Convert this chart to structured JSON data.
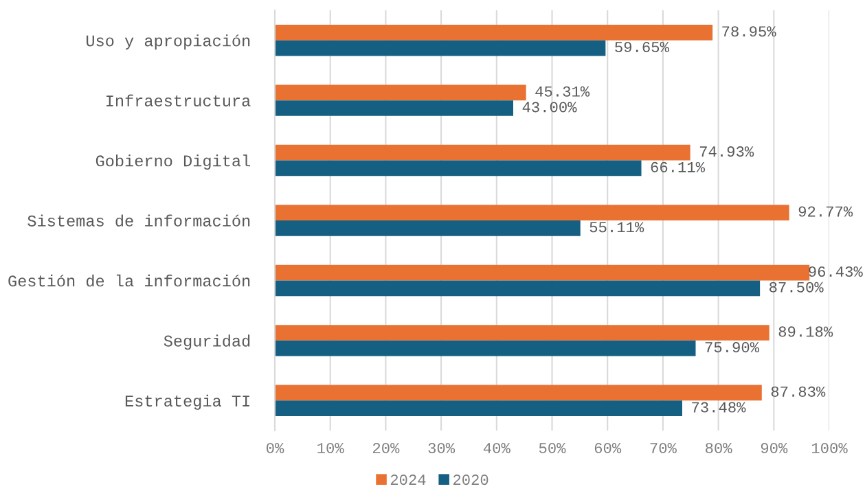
{
  "chart_data": {
    "type": "bar",
    "orientation": "horizontal",
    "categories": [
      "Uso y apropiación",
      "Infraestructura",
      "Gobierno Digital",
      "Sistemas de información",
      "Gestión de la información",
      "Seguridad",
      "Estrategia TI"
    ],
    "series": [
      {
        "name": "2024",
        "color": "#e97132",
        "values": [
          78.95,
          45.31,
          74.93,
          92.77,
          96.43,
          89.18,
          87.83
        ],
        "value_labels": [
          "78.95%",
          "45.31%",
          "74.93%",
          "92.77%",
          "96.43%",
          "89.18%",
          "87.83%"
        ]
      },
      {
        "name": "2020",
        "color": "#156082",
        "values": [
          59.65,
          43.0,
          66.11,
          55.11,
          87.5,
          75.9,
          73.48
        ],
        "value_labels": [
          "59.65%",
          "43.00%",
          "66.11%",
          "55.11%",
          "87.50%",
          "75.90%",
          "73.48%"
        ]
      }
    ],
    "xlim": [
      0,
      100
    ],
    "xticks": [
      {
        "value": 0,
        "label": "0%"
      },
      {
        "value": 10,
        "label": "10%"
      },
      {
        "value": 20,
        "label": "20%"
      },
      {
        "value": 30,
        "label": "30%"
      },
      {
        "value": 40,
        "label": "40%"
      },
      {
        "value": 50,
        "label": "50%"
      },
      {
        "value": 60,
        "label": "60%"
      },
      {
        "value": 70,
        "label": "70%"
      },
      {
        "value": 80,
        "label": "80%"
      },
      {
        "value": 90,
        "label": "90%"
      },
      {
        "value": 100,
        "label": "100%"
      }
    ],
    "grid": "x",
    "legend": "bottom"
  }
}
